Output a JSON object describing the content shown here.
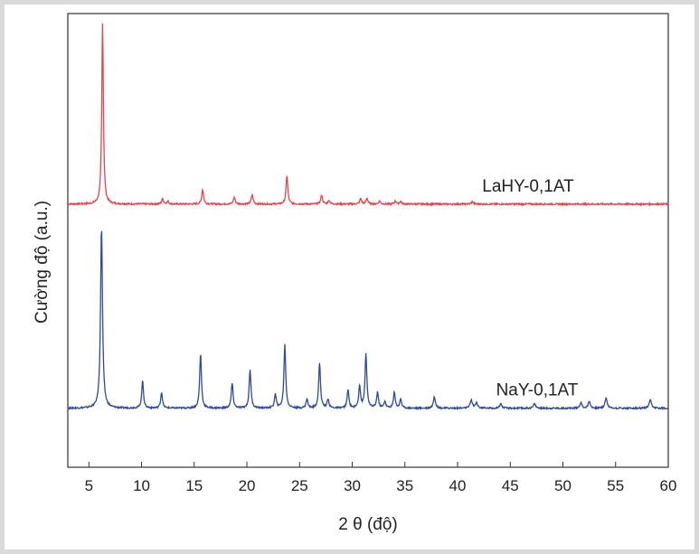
{
  "chart_data": {
    "type": "line",
    "title": "",
    "xlabel": "2 θ (độ)",
    "ylabel": "Cường độ (a.u.)",
    "xlim": [
      3,
      60
    ],
    "ylim": [
      0,
      100
    ],
    "x_ticks": [
      5,
      10,
      15,
      20,
      25,
      30,
      35,
      40,
      45,
      50,
      55,
      60
    ],
    "grid": false,
    "legend": "inline labels",
    "series": [
      {
        "name": "LaHY-0,1AT",
        "color": "#e8434c",
        "baseline": 58,
        "peaks": [
          {
            "x": 6.3,
            "h": 40.0,
            "w": 0.09
          },
          {
            "x": 12.0,
            "h": 1.2,
            "w": 0.1
          },
          {
            "x": 12.5,
            "h": 0.6,
            "w": 0.1
          },
          {
            "x": 15.8,
            "h": 3.2,
            "w": 0.1
          },
          {
            "x": 18.8,
            "h": 1.5,
            "w": 0.1
          },
          {
            "x": 20.5,
            "h": 2.1,
            "w": 0.1
          },
          {
            "x": 23.8,
            "h": 6.3,
            "w": 0.1
          },
          {
            "x": 27.1,
            "h": 2.0,
            "w": 0.1
          },
          {
            "x": 27.8,
            "h": 0.8,
            "w": 0.1
          },
          {
            "x": 30.8,
            "h": 1.2,
            "w": 0.1
          },
          {
            "x": 31.4,
            "h": 1.3,
            "w": 0.1
          },
          {
            "x": 32.6,
            "h": 0.7,
            "w": 0.1
          },
          {
            "x": 34.1,
            "h": 0.7,
            "w": 0.1
          },
          {
            "x": 34.6,
            "h": 0.6,
            "w": 0.1
          },
          {
            "x": 41.4,
            "h": 0.5,
            "w": 0.12
          }
        ]
      },
      {
        "name": "NaY-0,1AT",
        "color": "#2d4a9b",
        "baseline": 13,
        "peaks": [
          {
            "x": 6.2,
            "h": 40.0,
            "w": 0.11
          },
          {
            "x": 10.1,
            "h": 6.0,
            "w": 0.1
          },
          {
            "x": 11.9,
            "h": 3.5,
            "w": 0.1
          },
          {
            "x": 15.6,
            "h": 12.0,
            "w": 0.1
          },
          {
            "x": 18.6,
            "h": 5.5,
            "w": 0.1
          },
          {
            "x": 20.3,
            "h": 8.5,
            "w": 0.1
          },
          {
            "x": 22.7,
            "h": 3.0,
            "w": 0.1
          },
          {
            "x": 23.6,
            "h": 14.0,
            "w": 0.1
          },
          {
            "x": 25.7,
            "h": 2.0,
            "w": 0.1
          },
          {
            "x": 26.9,
            "h": 10.0,
            "w": 0.1
          },
          {
            "x": 27.7,
            "h": 2.0,
            "w": 0.1
          },
          {
            "x": 29.6,
            "h": 4.0,
            "w": 0.1
          },
          {
            "x": 30.7,
            "h": 5.0,
            "w": 0.1
          },
          {
            "x": 31.3,
            "h": 12.0,
            "w": 0.1
          },
          {
            "x": 32.4,
            "h": 3.5,
            "w": 0.1
          },
          {
            "x": 33.1,
            "h": 1.5,
            "w": 0.1
          },
          {
            "x": 34.0,
            "h": 3.5,
            "w": 0.1
          },
          {
            "x": 34.6,
            "h": 2.0,
            "w": 0.1
          },
          {
            "x": 37.8,
            "h": 2.5,
            "w": 0.12
          },
          {
            "x": 41.3,
            "h": 1.8,
            "w": 0.12
          },
          {
            "x": 41.8,
            "h": 1.2,
            "w": 0.12
          },
          {
            "x": 44.1,
            "h": 1.0,
            "w": 0.12
          },
          {
            "x": 47.3,
            "h": 1.0,
            "w": 0.12
          },
          {
            "x": 51.7,
            "h": 1.2,
            "w": 0.12
          },
          {
            "x": 52.5,
            "h": 1.5,
            "w": 0.12
          },
          {
            "x": 54.1,
            "h": 2.3,
            "w": 0.12
          },
          {
            "x": 58.3,
            "h": 1.8,
            "w": 0.12
          }
        ]
      }
    ]
  }
}
